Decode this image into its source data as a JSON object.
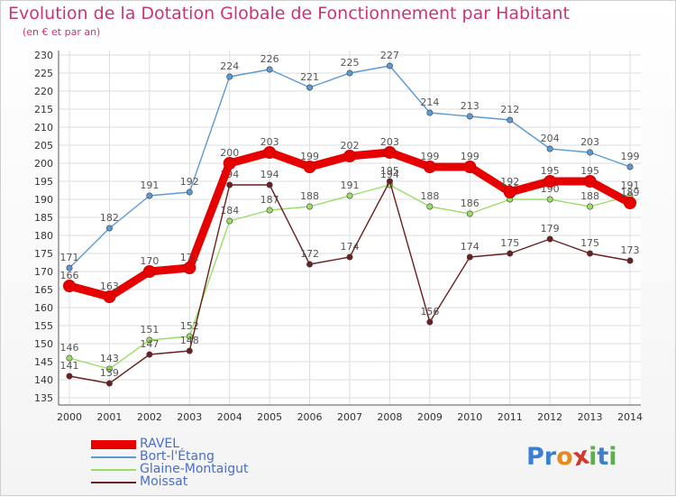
{
  "title": "Evolution de la Dotation Globale de Fonctionnement par Habitant",
  "subtitle": "(en € et par an)",
  "logo": {
    "text": "Proxiti",
    "letters": [
      "P",
      "r",
      "o",
      "x",
      "i",
      "t",
      "i"
    ],
    "colors": [
      "#3a7fd0",
      "#3a7fd0",
      "#e8891c",
      "#d0392b",
      "#5bb04a",
      "#3a7fd0",
      "#5bb04a"
    ]
  },
  "chart_data": {
    "type": "line",
    "x": [
      "2000",
      "2001",
      "2002",
      "2003",
      "2004",
      "2005",
      "2006",
      "2007",
      "2008",
      "2009",
      "2010",
      "2011",
      "2012",
      "2013",
      "2014"
    ],
    "ylim": [
      135,
      230
    ],
    "yticks": [
      135,
      140,
      145,
      150,
      155,
      160,
      165,
      170,
      175,
      180,
      185,
      190,
      195,
      200,
      205,
      210,
      215,
      220,
      225,
      230
    ],
    "grid": true,
    "legend_position": "bottom-left",
    "series": [
      {
        "name": "RAVEL",
        "color": "#e60000",
        "values": [
          166,
          163,
          170,
          171,
          200,
          203,
          199,
          202,
          203,
          199,
          199,
          192,
          195,
          195,
          189
        ]
      },
      {
        "name": "Bort-l'Étang",
        "color": "#5b9bd5",
        "values": [
          171,
          182,
          191,
          192,
          224,
          226,
          221,
          225,
          227,
          214,
          213,
          212,
          204,
          203,
          199
        ]
      },
      {
        "name": "Glaine-Montaigut",
        "color": "#99dd66",
        "values": [
          146,
          143,
          151,
          152,
          184,
          187,
          188,
          191,
          194,
          188,
          186,
          190,
          190,
          188,
          191
        ]
      },
      {
        "name": "Moissat",
        "color": "#6b1f1f",
        "values": [
          141,
          139,
          147,
          148,
          194,
          194,
          172,
          174,
          195,
          156,
          174,
          175,
          179,
          175,
          173
        ]
      }
    ]
  }
}
